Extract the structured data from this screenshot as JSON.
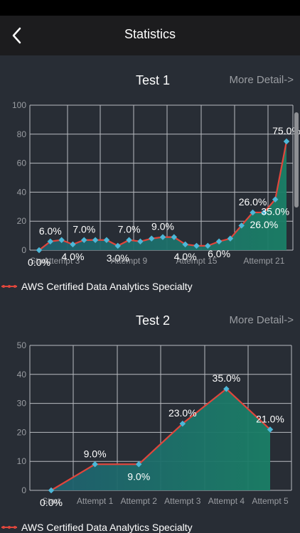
{
  "header": {
    "title": "Statistics"
  },
  "charts": [
    {
      "title": "Test 1",
      "more_label": "More Detail->",
      "legend_label": "AWS Certified Data Analytics Specialty",
      "chart_data": {
        "type": "line",
        "fill": "area",
        "x_tick_labels": [
          "Start",
          "Attempt 3",
          "Attempt 9",
          "Attempt 15",
          "Attempt 21"
        ],
        "x_tick_positions": [
          0,
          2,
          8,
          14,
          20
        ],
        "y_ticks": [
          0,
          20,
          40,
          60,
          80,
          100
        ],
        "ylim": [
          0,
          100
        ],
        "values": [
          0,
          6,
          7,
          4,
          7,
          7,
          7,
          3,
          7,
          6,
          8,
          9,
          9,
          4,
          3,
          3,
          6,
          8,
          17,
          26,
          26,
          35,
          75
        ],
        "data_labels": [
          {
            "i": 0,
            "text": "0.0%"
          },
          {
            "i": 1,
            "text": "6.0%"
          },
          {
            "i": 3,
            "text": "4.0%"
          },
          {
            "i": 4,
            "text": "7.0%"
          },
          {
            "i": 7,
            "text": "3.0%"
          },
          {
            "i": 8,
            "text": "7.0%"
          },
          {
            "i": 11,
            "text": "9.0%"
          },
          {
            "i": 13,
            "text": "4.0%"
          },
          {
            "i": 16,
            "text": "6.0%"
          },
          {
            "i": 19,
            "text": "26.0%",
            "pos": "above"
          },
          {
            "i": 20,
            "text": "26.0%"
          },
          {
            "i": 21,
            "text": "35.0%"
          },
          {
            "i": 22,
            "text": "75.0%"
          }
        ],
        "grid": true,
        "line_color": "#e0463c",
        "marker_color": "#4cb8d8",
        "fill_color_start": "#1f5f6e",
        "fill_color_end": "#1a7f66"
      }
    },
    {
      "title": "Test 2",
      "more_label": "More Detail->",
      "legend_label": "AWS Certified Data Analytics Specialty",
      "chart_data": {
        "type": "line",
        "fill": "area",
        "categories": [
          "Start",
          "Attempt 1",
          "Attempt 2",
          "Attempt 3",
          "Attempt 4",
          "Attempt 5"
        ],
        "values": [
          0,
          9,
          9,
          23,
          35,
          21
        ],
        "data_labels": [
          {
            "i": 0,
            "text": "0.0%"
          },
          {
            "i": 1,
            "text": "9.0%"
          },
          {
            "i": 2,
            "text": "9.0%",
            "pos": "below"
          },
          {
            "i": 3,
            "text": "23.0%"
          },
          {
            "i": 4,
            "text": "35.0%"
          },
          {
            "i": 5,
            "text": "21.0%"
          }
        ],
        "y_ticks": [
          0,
          10,
          20,
          30,
          40,
          50
        ],
        "ylim": [
          0,
          50
        ],
        "grid": true,
        "line_color": "#e0463c",
        "marker_color": "#4cb8d8",
        "fill_color_start": "#1f5f6e",
        "fill_color_end": "#1a7f66"
      }
    }
  ]
}
